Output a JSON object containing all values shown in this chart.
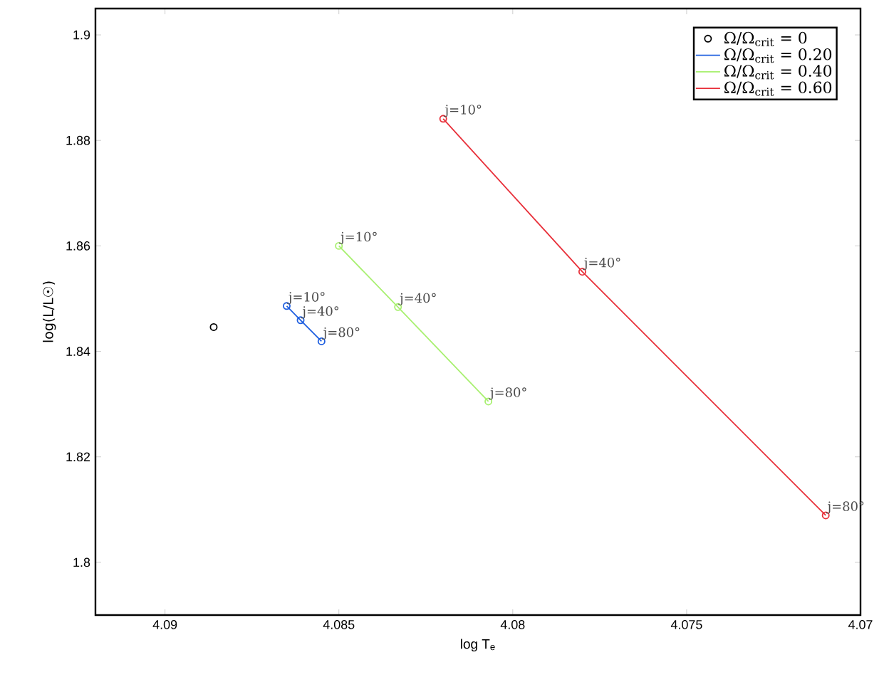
{
  "chart_data": {
    "type": "line",
    "xlabel": "log T$_{e}$",
    "ylabel": "log(L/L☉)",
    "xlim": [
      4.092,
      4.07
    ],
    "ylim": [
      1.79,
      1.905
    ],
    "xticks": [
      4.09,
      4.085,
      4.08,
      4.075,
      4.07
    ],
    "yticks": [
      1.8,
      1.82,
      1.84,
      1.86,
      1.88,
      1.9
    ],
    "marker": "circle",
    "legend": "top right",
    "grid": false,
    "series": [
      {
        "name": "Ω/Ω$_{crit}$ = 0",
        "type": "scatter",
        "color": "#000000",
        "x": [
          4.0886
        ],
        "values": [
          1.8446
        ]
      },
      {
        "name": "Ω/Ω$_{crit}$ = 0.20",
        "color": "#1f5fe0",
        "x": [
          4.0865,
          4.0861,
          4.0855
        ],
        "values": [
          1.8486,
          1.8459,
          1.8419
        ]
      },
      {
        "name": "Ω/Ω$_{crit}$ = 0.40",
        "color": "#a8f070",
        "x": [
          4.085,
          4.0833,
          4.0807
        ],
        "values": [
          1.86,
          1.8484,
          1.8305
        ]
      },
      {
        "name": "Ω/Ω$_{crit}$ = 0.60",
        "color": "#e8303a",
        "x": [
          4.082,
          4.078,
          4.071
        ],
        "values": [
          1.8841,
          1.8551,
          1.8089
        ]
      }
    ],
    "annotations": [
      {
        "text": "j=10°",
        "x": 4.0865,
        "y": 1.8486
      },
      {
        "text": "j=40°",
        "x": 4.0861,
        "y": 1.8459
      },
      {
        "text": "j=80°",
        "x": 4.0855,
        "y": 1.8419
      },
      {
        "text": "j=10°",
        "x": 4.085,
        "y": 1.86
      },
      {
        "text": "j=40°",
        "x": 4.0833,
        "y": 1.8484
      },
      {
        "text": "j=80°",
        "x": 4.0807,
        "y": 1.8305
      },
      {
        "text": "j=10°",
        "x": 4.082,
        "y": 1.8841
      },
      {
        "text": "j=40°",
        "x": 4.078,
        "y": 1.8551
      },
      {
        "text": "j=80°",
        "x": 4.071,
        "y": 1.8089
      }
    ]
  }
}
